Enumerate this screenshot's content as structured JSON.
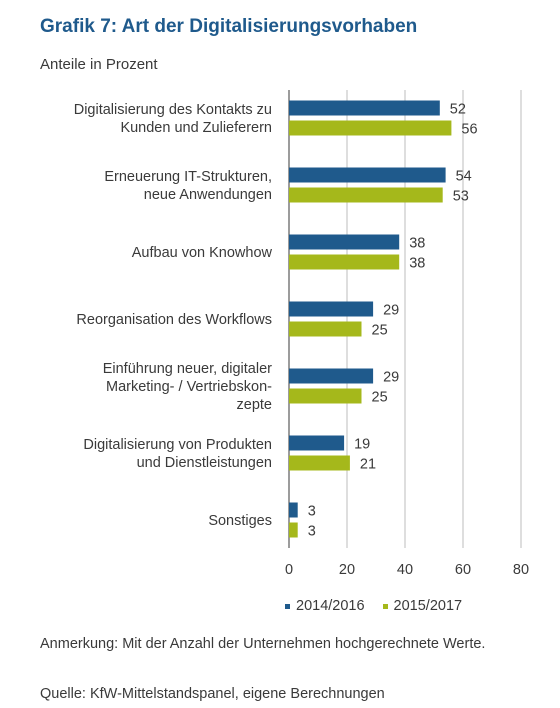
{
  "title": "Grafik 7: Art der Digitalisierungsvorhaben",
  "subtitle": "Anteile in Prozent",
  "note": "Anmerkung: Mit der Anzahl der Unternehmen hochgerechnete Werte.",
  "source": "Quelle: KfW-Mittelstandspanel, eigene Berechnungen",
  "chart_data": {
    "type": "bar",
    "orientation": "horizontal",
    "categories": [
      [
        "Digitalisierung des Kontakts zu",
        "Kunden und Zulieferern"
      ],
      [
        "Erneuerung IT-Strukturen,",
        "neue Anwendungen"
      ],
      [
        "Aufbau von Knowhow"
      ],
      [
        "Reorganisation des Workflows"
      ],
      [
        "Einführung neuer, digitaler",
        "Marketing- / Vertriebskon-",
        "zepte"
      ],
      [
        "Digitalisierung von Produkten",
        "und Dienstleistungen"
      ],
      [
        "Sonstiges"
      ]
    ],
    "series": [
      {
        "name": "2014/2016",
        "color": "#1f5a8c",
        "values": [
          52,
          54,
          38,
          29,
          29,
          19,
          3
        ]
      },
      {
        "name": "2015/2017",
        "color": "#a5b81b",
        "values": [
          56,
          53,
          38,
          25,
          25,
          21,
          3
        ]
      }
    ],
    "xlim": [
      0,
      80
    ],
    "xticks": [
      0,
      20,
      40,
      60,
      80
    ],
    "grid": "vertical",
    "legend": "bottom"
  }
}
